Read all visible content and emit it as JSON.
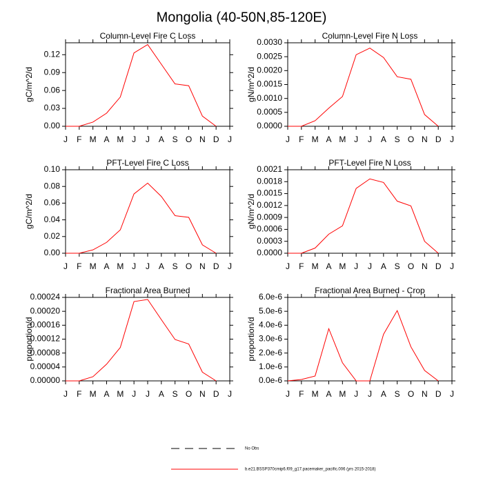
{
  "title": "Mongolia (40-50N,85-120E)",
  "legend": [
    {
      "name": "No Obs",
      "color": "#000000",
      "dash": true
    },
    {
      "name": "b.e21.BSSP370cmip6.f09_g17.pacemaker_pacific.006 (yrs 2015-2018)",
      "color": "#ff0000",
      "dash": false
    }
  ],
  "chart_data": [
    {
      "type": "line",
      "title": "Column-Level Fire C Loss",
      "y_label": "gC/m^2/d",
      "color": "#ff0000",
      "categories": [
        "J",
        "F",
        "M",
        "A",
        "M",
        "J",
        "J",
        "A",
        "S",
        "O",
        "N",
        "D",
        "J"
      ],
      "values": [
        0,
        0,
        0.007,
        0.022,
        0.049,
        0.123,
        0.137,
        0.104,
        0.071,
        0.068,
        0.017,
        0,
        null
      ],
      "ylim": [
        0,
        0.14
      ],
      "yticks": [
        {
          "value": 0,
          "label": "0.00"
        },
        {
          "value": 0.03,
          "label": "0.03"
        },
        {
          "value": 0.06,
          "label": "0.06"
        },
        {
          "value": 0.09,
          "label": "0.09"
        },
        {
          "value": 0.12,
          "label": "0.12"
        }
      ]
    },
    {
      "type": "line",
      "title": "Column-Level Fire N Loss",
      "y_label": "gN/m^2/d",
      "color": "#ff0000",
      "categories": [
        "J",
        "F",
        "M",
        "A",
        "M",
        "J",
        "J",
        "A",
        "S",
        "O",
        "N",
        "D",
        "J"
      ],
      "values": [
        0,
        0,
        0.0002,
        0.00065,
        0.00107,
        0.00257,
        0.00281,
        0.00247,
        0.00178,
        0.00169,
        0.00042,
        0,
        null
      ],
      "ylim": [
        0,
        0.003
      ],
      "yticks": [
        {
          "value": 0,
          "label": "0.0000"
        },
        {
          "value": 0.0005,
          "label": "0.0005"
        },
        {
          "value": 0.001,
          "label": "0.0010"
        },
        {
          "value": 0.0015,
          "label": "0.0015"
        },
        {
          "value": 0.002,
          "label": "0.0020"
        },
        {
          "value": 0.0025,
          "label": "0.0025"
        },
        {
          "value": 0.003,
          "label": "0.0030"
        }
      ]
    },
    {
      "type": "line",
      "title": "PFT-Level Fire C Loss",
      "y_label": "gC/m^2/d",
      "color": "#ff0000",
      "categories": [
        "J",
        "F",
        "M",
        "A",
        "M",
        "J",
        "J",
        "A",
        "S",
        "O",
        "N",
        "D",
        "J"
      ],
      "values": [
        0,
        0,
        0.004,
        0.013,
        0.028,
        0.071,
        0.084,
        0.068,
        0.045,
        0.043,
        0.01,
        0,
        null
      ],
      "ylim": [
        0,
        0.1
      ],
      "yticks": [
        {
          "value": 0,
          "label": "0.00"
        },
        {
          "value": 0.02,
          "label": "0.02"
        },
        {
          "value": 0.04,
          "label": "0.04"
        },
        {
          "value": 0.06,
          "label": "0.06"
        },
        {
          "value": 0.08,
          "label": "0.08"
        },
        {
          "value": 0.1,
          "label": "0.10"
        }
      ]
    },
    {
      "type": "line",
      "title": "PFT-Level Fire N Loss",
      "y_label": "gN/m^2/d",
      "color": "#ff0000",
      "categories": [
        "J",
        "F",
        "M",
        "A",
        "M",
        "J",
        "J",
        "A",
        "S",
        "O",
        "N",
        "D",
        "J"
      ],
      "values": [
        0,
        0,
        0.00013,
        0.00048,
        0.00069,
        0.00163,
        0.00187,
        0.00178,
        0.00131,
        0.00119,
        0.0003,
        0,
        null
      ],
      "ylim": [
        0,
        0.0021
      ],
      "yticks": [
        {
          "value": 0,
          "label": "0.0000"
        },
        {
          "value": 0.0003,
          "label": "0.0003"
        },
        {
          "value": 0.0006,
          "label": "0.0006"
        },
        {
          "value": 0.0009,
          "label": "0.0009"
        },
        {
          "value": 0.0012,
          "label": "0.0012"
        },
        {
          "value": 0.0015,
          "label": "0.0015"
        },
        {
          "value": 0.0018,
          "label": "0.0018"
        },
        {
          "value": 0.0021,
          "label": "0.0021"
        }
      ]
    },
    {
      "type": "line",
      "title": "Fractional Area Burned",
      "y_label": "proportion/d",
      "color": "#ff0000",
      "categories": [
        "J",
        "F",
        "M",
        "A",
        "M",
        "J",
        "J",
        "A",
        "S",
        "O",
        "N",
        "D",
        "J"
      ],
      "values": [
        0,
        0,
        1.2e-05,
        4.8e-05,
        9.6e-05,
        0.000228,
        0.000234,
        0.000176,
        0.000119,
        0.000106,
        2.5e-05,
        0,
        null
      ],
      "ylim": [
        0,
        0.00024
      ],
      "yticks": [
        {
          "value": 0,
          "label": "0.00000"
        },
        {
          "value": 4e-05,
          "label": "0.00004"
        },
        {
          "value": 8e-05,
          "label": "0.00008"
        },
        {
          "value": 0.00012,
          "label": "0.00012"
        },
        {
          "value": 0.00016,
          "label": "0.00016"
        },
        {
          "value": 0.0002,
          "label": "0.00020"
        },
        {
          "value": 0.00024,
          "label": "0.00024"
        }
      ]
    },
    {
      "type": "line",
      "title": "Fractional Area Burned - Crop",
      "y_label": "proportion/d",
      "color": "#ff0000",
      "categories": [
        "J",
        "F",
        "M",
        "A",
        "M",
        "J",
        "J",
        "A",
        "S",
        "O",
        "N",
        "D",
        "J"
      ],
      "values": [
        0,
        1e-07,
        3.5e-07,
        3.75e-06,
        1.3e-06,
        0,
        0,
        3.35e-06,
        5.05e-06,
        2.45e-06,
        7.5e-07,
        0,
        null
      ],
      "ylim": [
        0,
        6e-06
      ],
      "yticks": [
        {
          "value": 0,
          "label": "0.0e-6"
        },
        {
          "value": 1e-06,
          "label": "1.0e-6"
        },
        {
          "value": 2e-06,
          "label": "2.0e-6"
        },
        {
          "value": 3e-06,
          "label": "3.0e-6"
        },
        {
          "value": 4e-06,
          "label": "4.0e-6"
        },
        {
          "value": 5e-06,
          "label": "5.0e-6"
        },
        {
          "value": 6e-06,
          "label": "6.0e-6"
        }
      ]
    }
  ]
}
